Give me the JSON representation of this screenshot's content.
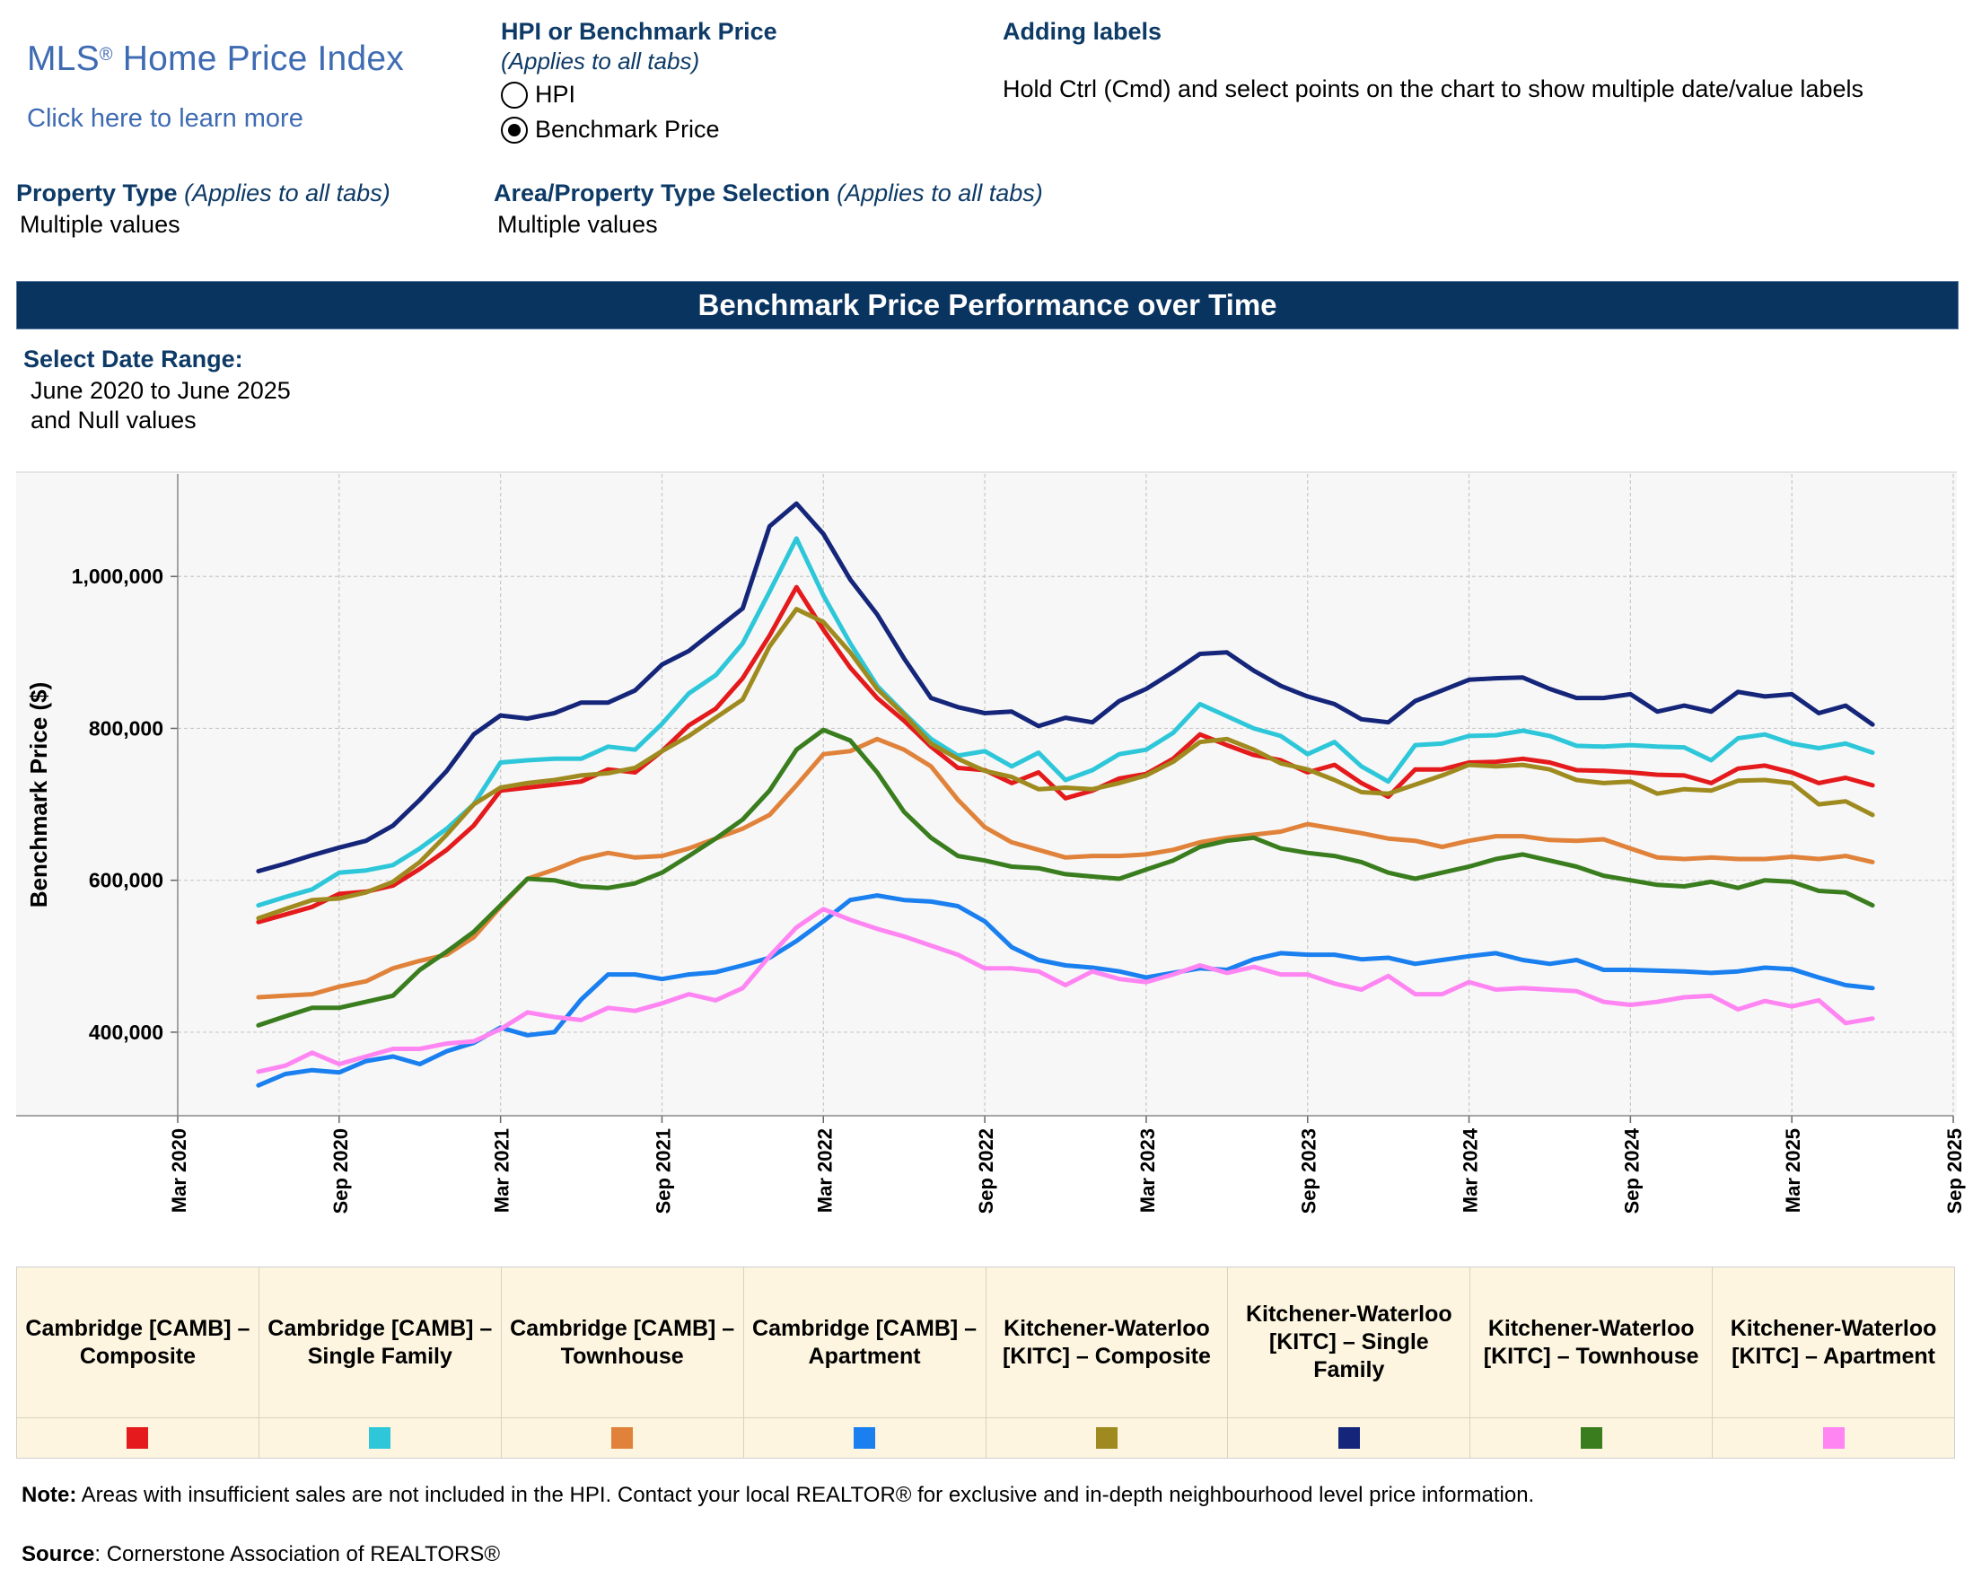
{
  "logo": {
    "title": "MLS",
    "reg": "®",
    "title_rest": " Home Price Index",
    "link": "Click here to learn more"
  },
  "measure": {
    "heading": "HPI or Benchmark Price",
    "subheading": "(Applies to all tabs)",
    "options": [
      {
        "label": "HPI",
        "selected": false
      },
      {
        "label": "Benchmark Price",
        "selected": true
      }
    ]
  },
  "labels_help": {
    "heading": "Adding labels",
    "text": "Hold Ctrl (Cmd) and select points on the chart to show multiple date/value labels"
  },
  "property_type": {
    "heading": "Property Type",
    "sub": "(Applies to all tabs)",
    "value": "Multiple values"
  },
  "area_selection": {
    "heading": "Area/Property Type Selection",
    "sub": "(Applies to all tabs)",
    "value": "Multiple values"
  },
  "banner": "Benchmark Price Performance over Time",
  "date_range": {
    "heading": "Select Date Range:",
    "line1": "June 2020 to June 2025",
    "line2": "and Null values"
  },
  "chart_data": {
    "type": "line",
    "ylabel": "Benchmark Price ($)",
    "ylim": [
      290000,
      1135000
    ],
    "y_ticks": [
      400000,
      600000,
      800000,
      1000000
    ],
    "y_tick_labels": [
      "400,000",
      "600,000",
      "800,000",
      "1,000,000"
    ],
    "x_range": [
      "2020-03",
      "2025-09"
    ],
    "x_ticks": [
      "2020-03",
      "2020-09",
      "2021-03",
      "2021-09",
      "2022-03",
      "2022-09",
      "2023-03",
      "2023-09",
      "2024-03",
      "2024-09",
      "2025-03",
      "2025-09"
    ],
    "x_tick_labels": [
      "Mar 2020",
      "Sep 2020",
      "Mar 2021",
      "Sep 2021",
      "Mar 2022",
      "Sep 2022",
      "Mar 2023",
      "Sep 2023",
      "Mar 2024",
      "Sep 2024",
      "Mar 2025",
      "Sep 2025"
    ],
    "x_start": "2020-06",
    "grid": true,
    "legend_position": "bottom",
    "series": [
      {
        "name": "Cambridge [CAMB] – Composite",
        "color": "#e41a1c",
        "values": [
          545000,
          555000,
          565000,
          582000,
          585000,
          593000,
          615000,
          640000,
          672000,
          718000,
          722000,
          726000,
          730000,
          746000,
          742000,
          770000,
          804000,
          826000,
          866000,
          922000,
          986000,
          930000,
          880000,
          840000,
          810000,
          776000,
          748000,
          745000,
          728000,
          742000,
          708000,
          718000,
          734000,
          740000,
          760000,
          792000,
          778000,
          765000,
          758000,
          742000,
          752000,
          728000,
          710000,
          746000,
          746000,
          755000,
          756000,
          760000,
          755000,
          745000,
          744000,
          742000,
          739000,
          738000,
          728000,
          747000,
          751000,
          742000,
          728000,
          735000,
          725000
        ]
      },
      {
        "name": "Cambridge [CAMB] – Single Family",
        "color": "#2ec7d9",
        "values": [
          567000,
          578000,
          588000,
          610000,
          613000,
          620000,
          642000,
          668000,
          700000,
          755000,
          758000,
          760000,
          760000,
          776000,
          772000,
          806000,
          846000,
          870000,
          912000,
          980000,
          1050000,
          975000,
          912000,
          856000,
          820000,
          786000,
          764000,
          770000,
          750000,
          768000,
          732000,
          745000,
          766000,
          772000,
          794000,
          832000,
          816000,
          800000,
          790000,
          766000,
          782000,
          750000,
          730000,
          778000,
          780000,
          790000,
          791000,
          797000,
          790000,
          777000,
          776000,
          778000,
          776000,
          775000,
          758000,
          787000,
          792000,
          780000,
          774000,
          780000,
          768000
        ]
      },
      {
        "name": "Cambridge [CAMB] – Townhouse",
        "color": "#e0823a",
        "values": [
          446000,
          448000,
          450000,
          460000,
          467000,
          484000,
          494000,
          502000,
          525000,
          565000,
          602000,
          614000,
          628000,
          636000,
          630000,
          632000,
          642000,
          655000,
          668000,
          686000,
          725000,
          766000,
          770000,
          786000,
          772000,
          750000,
          706000,
          670000,
          650000,
          640000,
          630000,
          632000,
          632000,
          634000,
          640000,
          650000,
          656000,
          660000,
          664000,
          674000,
          668000,
          662000,
          655000,
          652000,
          644000,
          652000,
          658000,
          658000,
          653000,
          652000,
          654000,
          642000,
          630000,
          628000,
          630000,
          628000,
          628000,
          631000,
          628000,
          632000,
          624000
        ]
      },
      {
        "name": "Cambridge [CAMB] – Apartment",
        "color": "#1a7fef",
        "values": [
          330000,
          345000,
          350000,
          347000,
          362000,
          368000,
          358000,
          375000,
          386000,
          406000,
          396000,
          400000,
          443000,
          476000,
          476000,
          470000,
          476000,
          479000,
          488000,
          498000,
          520000,
          546000,
          574000,
          580000,
          574000,
          572000,
          566000,
          546000,
          512000,
          495000,
          488000,
          485000,
          480000,
          472000,
          478000,
          484000,
          482000,
          496000,
          504000,
          502000,
          502000,
          496000,
          498000,
          490000,
          495000,
          500000,
          504000,
          495000,
          490000,
          495000,
          482000,
          482000,
          481000,
          480000,
          478000,
          480000,
          485000,
          483000,
          472000,
          462000,
          458000
        ]
      },
      {
        "name": "Kitchener-Waterloo [KITC] – Composite",
        "color": "#9e8a1e",
        "values": [
          550000,
          562000,
          574000,
          576000,
          584000,
          598000,
          624000,
          660000,
          700000,
          722000,
          728000,
          732000,
          738000,
          741000,
          748000,
          770000,
          790000,
          814000,
          838000,
          908000,
          957000,
          940000,
          900000,
          852000,
          818000,
          780000,
          760000,
          744000,
          736000,
          720000,
          722000,
          720000,
          728000,
          738000,
          756000,
          782000,
          786000,
          772000,
          754000,
          746000,
          732000,
          716000,
          714000,
          726000,
          738000,
          752000,
          750000,
          752000,
          746000,
          732000,
          728000,
          730000,
          714000,
          720000,
          718000,
          731000,
          732000,
          728000,
          700000,
          704000,
          686000
        ]
      },
      {
        "name": "Kitchener-Waterloo [KITC] – Single Family",
        "color": "#15267a",
        "values": [
          612000,
          622000,
          633000,
          643000,
          652000,
          672000,
          706000,
          744000,
          792000,
          817000,
          813000,
          820000,
          834000,
          834000,
          850000,
          884000,
          902000,
          930000,
          958000,
          1066000,
          1096000,
          1056000,
          996000,
          950000,
          892000,
          840000,
          828000,
          820000,
          822000,
          803000,
          814000,
          808000,
          836000,
          852000,
          874000,
          898000,
          900000,
          876000,
          856000,
          842000,
          832000,
          812000,
          808000,
          836000,
          850000,
          864000,
          866000,
          867000,
          852000,
          840000,
          840000,
          845000,
          822000,
          830000,
          822000,
          848000,
          842000,
          845000,
          820000,
          830000,
          805000
        ]
      },
      {
        "name": "Kitchener-Waterloo [KITC] – Townhouse",
        "color": "#3a7d1e",
        "values": [
          409000,
          421000,
          432000,
          432000,
          440000,
          448000,
          482000,
          506000,
          532000,
          567000,
          602000,
          600000,
          592000,
          590000,
          596000,
          610000,
          632000,
          655000,
          680000,
          718000,
          772000,
          798000,
          784000,
          742000,
          690000,
          656000,
          632000,
          626000,
          618000,
          616000,
          608000,
          605000,
          602000,
          614000,
          626000,
          644000,
          652000,
          656000,
          642000,
          636000,
          632000,
          624000,
          610000,
          602000,
          610000,
          618000,
          628000,
          634000,
          626000,
          618000,
          606000,
          600000,
          594000,
          592000,
          598000,
          590000,
          600000,
          598000,
          586000,
          584000,
          567000
        ]
      },
      {
        "name": "Kitchener-Waterloo [KITC] – Apartment",
        "color": "#ff86f2",
        "values": [
          348000,
          356000,
          373000,
          358000,
          368000,
          378000,
          378000,
          385000,
          388000,
          404000,
          426000,
          420000,
          416000,
          432000,
          428000,
          438000,
          450000,
          442000,
          458000,
          500000,
          538000,
          562000,
          548000,
          536000,
          526000,
          514000,
          502000,
          484000,
          484000,
          480000,
          462000,
          480000,
          470000,
          466000,
          476000,
          488000,
          478000,
          486000,
          476000,
          476000,
          464000,
          456000,
          474000,
          450000,
          450000,
          466000,
          456000,
          458000,
          456000,
          454000,
          440000,
          436000,
          440000,
          446000,
          448000,
          430000,
          441000,
          434000,
          442000,
          412000,
          418000
        ]
      }
    ]
  },
  "legend_items": [
    {
      "label": "Cambridge [CAMB] – Composite",
      "color": "#e41a1c"
    },
    {
      "label": "Cambridge [CAMB] – Single Family",
      "color": "#2ec7d9"
    },
    {
      "label": "Cambridge [CAMB] – Townhouse",
      "color": "#e0823a"
    },
    {
      "label": "Cambridge [CAMB] – Apartment",
      "color": "#1a7fef"
    },
    {
      "label": "Kitchener-Waterloo [KITC] – Composite",
      "color": "#9e8a1e"
    },
    {
      "label": "Kitchener-Waterloo [KITC] – Single Family",
      "color": "#15267a"
    },
    {
      "label": "Kitchener-Waterloo [KITC] – Townhouse",
      "color": "#3a7d1e"
    },
    {
      "label": "Kitchener-Waterloo [KITC] – Apartment",
      "color": "#ff86f2"
    }
  ],
  "note": {
    "label": "Note:",
    "text": " Areas with insufficient sales are not included in the HPI. Contact your local REALTOR® for exclusive and in-depth neighbourhood level price information."
  },
  "source": {
    "label": "Source",
    "text": ": Cornerstone Association of REALTORS®"
  }
}
